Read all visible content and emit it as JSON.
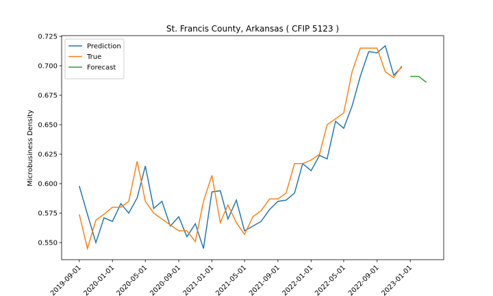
{
  "chart_data": {
    "type": "line",
    "title": "St. Francis County, Arkansas ( CFIP 5123 )",
    "ylabel": "Microbusiness Density",
    "xlim": [
      "2019-06-28",
      "2023-05-04"
    ],
    "xticks": [
      "2019-09-01",
      "2020-01-01",
      "2020-05-01",
      "2020-09-01",
      "2021-01-01",
      "2021-05-01",
      "2021-09-01",
      "2022-01-01",
      "2022-05-01",
      "2022-09-01",
      "2023-01-01"
    ],
    "ylim": [
      0.5355,
      0.7256
    ],
    "yticks": [
      {
        "value": 0.55,
        "label": "0.550"
      },
      0.575,
      {
        "value": 0.6,
        "label": "0.600"
      },
      0.625,
      {
        "value": 0.65,
        "label": "0.650"
      },
      0.675,
      {
        "value": 0.7,
        "label": "0.700"
      },
      0.725
    ],
    "legend": "upper left",
    "series": [
      {
        "name": "Prediction",
        "color": "#1f77b4",
        "x": [
          "2019-09-01",
          "2019-10-01",
          "2019-11-01",
          "2019-12-01",
          "2020-01-01",
          "2020-02-01",
          "2020-03-01",
          "2020-04-01",
          "2020-05-01",
          "2020-06-01",
          "2020-07-01",
          "2020-08-01",
          "2020-09-01",
          "2020-10-01",
          "2020-11-01",
          "2020-12-01",
          "2021-01-01",
          "2021-02-01",
          "2021-03-01",
          "2021-04-01",
          "2021-05-01",
          "2021-06-01",
          "2021-07-01",
          "2021-08-01",
          "2021-09-01",
          "2021-10-01",
          "2021-11-01",
          "2021-12-01",
          "2022-01-01",
          "2022-02-01",
          "2022-03-01",
          "2022-04-01",
          "2022-05-01",
          "2022-06-01",
          "2022-07-01",
          "2022-08-01",
          "2022-09-01",
          "2022-10-01",
          "2022-11-01",
          "2022-12-01"
        ],
        "values": [
          0.598,
          0.574,
          0.55,
          0.571,
          0.568,
          0.583,
          0.575,
          0.588,
          0.615,
          0.579,
          0.585,
          0.564,
          0.572,
          0.555,
          0.566,
          0.545,
          0.593,
          0.594,
          0.57,
          0.586,
          0.56,
          0.564,
          0.568,
          0.578,
          0.585,
          0.586,
          0.592,
          0.617,
          0.611,
          0.624,
          0.621,
          0.653,
          0.647,
          0.666,
          0.691,
          0.712,
          0.711,
          0.717,
          0.692,
          0.699
        ]
      },
      {
        "name": "True",
        "color": "#ff7f0e",
        "x": [
          "2019-09-01",
          "2019-10-01",
          "2019-11-01",
          "2019-12-01",
          "2020-01-01",
          "2020-02-01",
          "2020-03-01",
          "2020-04-01",
          "2020-05-01",
          "2020-06-01",
          "2020-07-01",
          "2020-08-01",
          "2020-09-01",
          "2020-10-01",
          "2020-11-01",
          "2020-12-01",
          "2021-01-01",
          "2021-02-01",
          "2021-03-01",
          "2021-04-01",
          "2021-05-01",
          "2021-06-01",
          "2021-07-01",
          "2021-08-01",
          "2021-09-01",
          "2021-10-01",
          "2021-11-01",
          "2021-12-01",
          "2022-01-01",
          "2022-02-01",
          "2022-03-01",
          "2022-04-01",
          "2022-05-01",
          "2022-06-01",
          "2022-07-01",
          "2022-08-01",
          "2022-09-01",
          "2022-10-01",
          "2022-11-01",
          "2022-12-01"
        ],
        "values": [
          0.574,
          0.545,
          0.569,
          0.574,
          0.58,
          0.58,
          0.585,
          0.619,
          0.585,
          0.575,
          0.57,
          0.565,
          0.56,
          0.56,
          0.551,
          0.585,
          0.607,
          0.567,
          0.582,
          0.567,
          0.557,
          0.572,
          0.577,
          0.587,
          0.587,
          0.592,
          0.617,
          0.617,
          0.62,
          0.625,
          0.65,
          0.655,
          0.66,
          0.695,
          0.715,
          0.715,
          0.715,
          0.695,
          0.69,
          0.7
        ]
      },
      {
        "name": "Forecast",
        "color": "#2ca02c",
        "x": [
          "2023-01-01",
          "2023-02-01",
          "2023-03-01"
        ],
        "values": [
          0.691,
          0.691,
          0.686
        ]
      }
    ]
  }
}
